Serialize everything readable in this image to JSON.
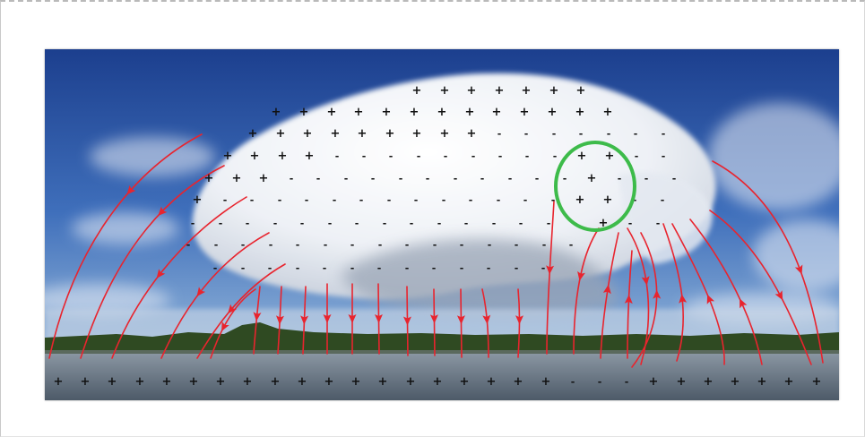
{
  "image": {
    "subject": "storm-cloud-charge-distribution",
    "colors": {
      "sky_top": "#1c3f8e",
      "sky_mid": "#3f6fbb",
      "sky_low": "#8fb2d8",
      "cloud": "#f4f6fa",
      "cloud_shadow": "#aeb8c8",
      "trees": "#2f4a22",
      "water": "#6d7c8c",
      "field_lines": "#e8242e",
      "circle": "#3dbb4a",
      "charge_marks": "#111111"
    },
    "icons": [
      "plus-charge-icon",
      "minus-charge-icon",
      "arrowhead-icon",
      "highlight-circle-icon"
    ]
  }
}
